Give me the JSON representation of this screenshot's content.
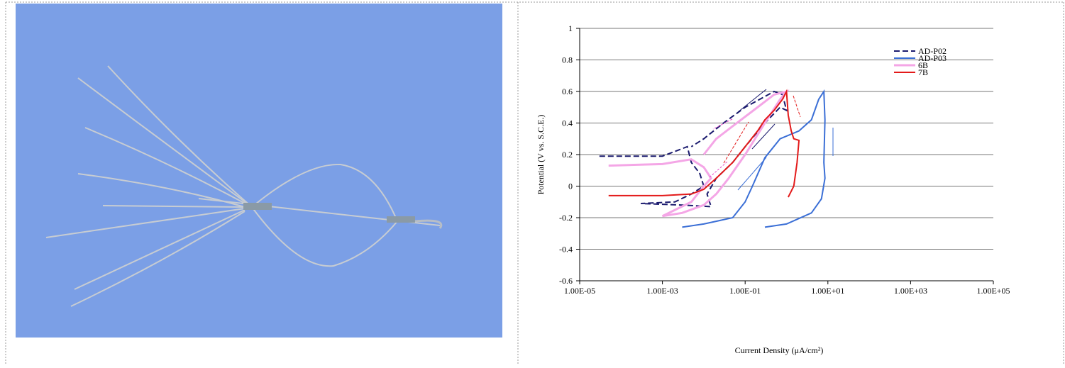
{
  "chart_data": {
    "type": "line",
    "xlabel": "Current Density (μA/cm²)",
    "ylabel": "Potential (V vs. S.C.E.)",
    "xlog": true,
    "grid": true,
    "legend": "upper right",
    "xlim": [
      1e-05,
      100000
    ],
    "xticks": [
      {
        "value": 1e-05,
        "label": "1.00E-05"
      },
      {
        "value": 0.001,
        "label": "1.00E-03"
      },
      {
        "value": 0.1,
        "label": "1.00E-01"
      },
      {
        "value": 10,
        "label": "1.00E+01"
      },
      {
        "value": 1000,
        "label": "1.00E+03"
      },
      {
        "value": 100000,
        "label": "1.00E+05"
      }
    ],
    "ylim": [
      -0.6,
      1
    ],
    "yticks": [
      1,
      0.8,
      0.6,
      0.4,
      0.2,
      0,
      -0.2,
      -0.4,
      -0.6
    ],
    "series": [
      {
        "name": "AD-P02",
        "color": "#1a1a6e",
        "dash": true,
        "x": [
          3e-05,
          0.001,
          0.004,
          0.005,
          0.008,
          0.01,
          0.005,
          0.002,
          0.0003,
          0.003,
          0.015,
          0.012,
          0.02,
          0.05,
          0.1,
          0.3,
          0.7,
          1,
          0.8,
          0.5,
          0.1,
          0.03,
          0.01,
          0.005
        ],
        "values": [
          0.19,
          0.19,
          0.25,
          0.15,
          0.08,
          0,
          -0.05,
          -0.1,
          -0.11,
          -0.12,
          -0.13,
          -0.05,
          0.05,
          0.15,
          0.25,
          0.4,
          0.5,
          0.48,
          0.58,
          0.6,
          0.5,
          0.4,
          0.3,
          0.25
        ]
      },
      {
        "name": "AD-P03",
        "color": "#3b6fd6",
        "dash": false,
        "x": [
          0.003,
          0.01,
          0.05,
          0.1,
          0.15,
          0.3,
          0.7,
          2,
          4,
          6,
          8,
          8.5,
          8,
          8.5,
          7,
          4,
          1,
          0.3
        ],
        "values": [
          -0.26,
          -0.24,
          -0.2,
          -0.1,
          0,
          0.18,
          0.3,
          0.35,
          0.42,
          0.55,
          0.6,
          0.42,
          0.15,
          0.05,
          -0.08,
          -0.17,
          -0.24,
          -0.26
        ]
      },
      {
        "name": "6B",
        "color": "#f4a6e6",
        "dash": false,
        "x": [
          5e-05,
          0.001,
          0.005,
          0.01,
          0.015,
          0.01,
          0.005,
          0.001,
          0.003,
          0.01,
          0.02,
          0.04,
          0.1,
          0.3,
          0.7,
          1,
          0.5,
          0.2,
          0.05,
          0.02,
          0.01
        ],
        "values": [
          0.13,
          0.14,
          0.17,
          0.12,
          0.05,
          0,
          -0.1,
          -0.19,
          -0.17,
          -0.12,
          -0.05,
          0.05,
          0.2,
          0.4,
          0.55,
          0.6,
          0.58,
          0.5,
          0.38,
          0.3,
          0.2
        ]
      },
      {
        "name": "7B",
        "color": "#e31a1a",
        "dash": false,
        "x": [
          5e-05,
          0.001,
          0.005,
          0.01,
          0.02,
          0.05,
          0.1,
          0.2,
          0.3,
          0.5,
          0.8,
          1,
          1.1,
          1.3,
          1.5,
          2,
          1.8,
          1.5,
          1.1
        ],
        "values": [
          -0.06,
          -0.06,
          -0.05,
          -0.02,
          0.05,
          0.15,
          0.25,
          0.35,
          0.42,
          0.48,
          0.55,
          0.6,
          0.45,
          0.35,
          0.3,
          0.29,
          0.15,
          0,
          -0.07
        ]
      }
    ]
  }
}
